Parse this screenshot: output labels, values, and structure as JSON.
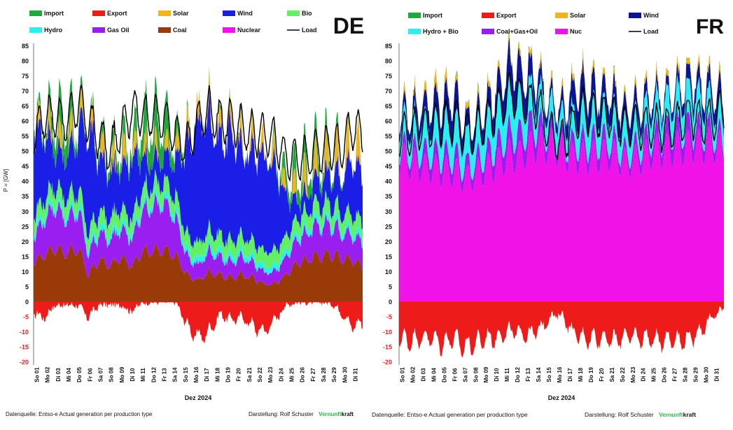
{
  "chart_data": [
    {
      "type": "area",
      "country": "DE",
      "title": "DE",
      "xlabel": "Dez 2024",
      "ylabel": "P = [GW]",
      "ylim": [
        -20,
        85
      ],
      "yticks": [
        -20,
        -15,
        -10,
        -5,
        0,
        5,
        10,
        15,
        20,
        25,
        30,
        35,
        40,
        45,
        50,
        55,
        60,
        65,
        70,
        75,
        80,
        85
      ],
      "grid": false,
      "legend_position": "top",
      "x_ticks": [
        "So 01",
        "Mo 02",
        "Di 03",
        "Mi 04",
        "Do 05",
        "Fr 06",
        "Sa 07",
        "So 08",
        "Mo 09",
        "Di 10",
        "Mi 11",
        "Do 12",
        "Fr 13",
        "Sa 14",
        "So 15",
        "Mo 16",
        "Di 17",
        "Mi 18",
        "Do 19",
        "Fr 20",
        "Sa 21",
        "So 22",
        "Mo 23",
        "Di 24",
        "Mi 25",
        "Do 26",
        "Fr 27",
        "Sa 28",
        "So 29",
        "Mo 30",
        "Di 31"
      ],
      "legend": [
        {
          "name": "Import",
          "color": "#1fa83e",
          "kind": "box"
        },
        {
          "name": "Export",
          "color": "#ee1b1b",
          "kind": "box"
        },
        {
          "name": "Solar",
          "color": "#f0b41c",
          "kind": "box"
        },
        {
          "name": "Wind",
          "color": "#1a1ee6",
          "kind": "box"
        },
        {
          "name": "Bio",
          "color": "#64f064",
          "kind": "box"
        },
        {
          "name": "Hydro",
          "color": "#28f0f0",
          "kind": "box"
        },
        {
          "name": "Gas Oil",
          "color": "#9a1ef0",
          "kind": "box"
        },
        {
          "name": "Coal",
          "color": "#9a3a08",
          "kind": "box"
        },
        {
          "name": "Nuclear",
          "color": "#f012e6",
          "kind": "box"
        },
        {
          "name": "Load",
          "color": "#000000",
          "kind": "line"
        }
      ],
      "series_daily": {
        "base": {
          "name": "Coal",
          "color": "#9a3a08",
          "values": [
            13,
            16,
            18,
            16,
            18,
            9,
            14,
            12,
            15,
            12,
            17,
            17,
            17,
            15,
            9,
            7,
            10,
            9,
            8,
            9,
            8,
            6,
            6,
            9,
            13,
            14,
            15,
            16,
            15,
            14,
            12
          ]
        },
        "stack": [
          {
            "name": "Gas Oil",
            "color": "#9a1ef0",
            "values": [
              8,
              12,
              14,
              11,
              13,
              7,
              9,
              8,
              10,
              9,
              14,
              15,
              15,
              12,
              6,
              5,
              7,
              6,
              5,
              6,
              5,
              4,
              4,
              6,
              8,
              9,
              10,
              10,
              9,
              8,
              8
            ]
          },
          {
            "name": "Hydro",
            "color": "#28f0f0",
            "values": [
              2,
              2,
              2,
              2,
              2,
              2,
              2,
              2,
              2,
              2,
              2,
              2,
              2,
              2,
              2,
              2,
              2,
              2,
              2,
              2,
              2,
              2,
              2,
              2,
              2,
              2,
              2,
              2,
              2,
              2,
              2
            ]
          },
          {
            "name": "Bio",
            "color": "#64f064",
            "values": [
              5,
              5,
              5,
              5,
              5,
              5,
              5,
              5,
              5,
              5,
              5,
              5,
              5,
              5,
              5,
              5,
              5,
              5,
              5,
              5,
              5,
              5,
              5,
              5,
              5,
              5,
              5,
              5,
              5,
              5,
              5
            ]
          },
          {
            "name": "Wind",
            "color": "#1a1ee6",
            "values": [
              28,
              22,
              12,
              14,
              18,
              34,
              18,
              15,
              14,
              20,
              10,
              8,
              8,
              12,
              30,
              40,
              38,
              32,
              36,
              28,
              30,
              32,
              28,
              14,
              6,
              6,
              8,
              10,
              12,
              18,
              16
            ]
          },
          {
            "name": "Solar",
            "color": "#f0b41c",
            "values": [
              3,
              3,
              4,
              4,
              3,
              3,
              4,
              3,
              4,
              3,
              3,
              3,
              3,
              3,
              3,
              3,
              3,
              3,
              3,
              3,
              3,
              3,
              3,
              3,
              4,
              5,
              5,
              6,
              5,
              6,
              6
            ]
          },
          {
            "name": "Import",
            "color": "#1fa83e",
            "values": [
              2,
              3,
              10,
              12,
              4,
              1,
              3,
              4,
              6,
              5,
              12,
              14,
              12,
              5,
              1,
              0,
              0,
              1,
              0,
              1,
              0,
              0,
              2,
              6,
              8,
              8,
              6,
              4,
              3,
              0,
              0
            ]
          }
        ],
        "export": {
          "name": "Export",
          "color": "#ee1b1b",
          "values": [
            -4,
            -5,
            -1,
            -1,
            -1,
            -5,
            -1,
            -1,
            -1,
            -3,
            0,
            0,
            0,
            0,
            -8,
            -12,
            -10,
            -4,
            -6,
            -5,
            -8,
            -10,
            -6,
            -1,
            0,
            0,
            0,
            0,
            -3,
            -8,
            -7
          ]
        },
        "load": {
          "name": "Load",
          "color": "#000000",
          "values": [
            55,
            62,
            62,
            60,
            66,
            60,
            55,
            50,
            58,
            64,
            62,
            62,
            60,
            55,
            52,
            60,
            64,
            60,
            60,
            58,
            56,
            56,
            54,
            48,
            48,
            48,
            50,
            52,
            52,
            58,
            56
          ]
        }
      }
    },
    {
      "type": "area",
      "country": "FR",
      "title": "FR",
      "xlabel": "Dez 2024",
      "ylabel": "",
      "ylim": [
        -20,
        85
      ],
      "yticks": [
        -20,
        -15,
        -10,
        -5,
        0,
        5,
        10,
        15,
        20,
        25,
        30,
        35,
        40,
        45,
        50,
        55,
        60,
        65,
        70,
        75,
        80,
        85
      ],
      "grid": false,
      "legend_position": "top",
      "x_ticks": [
        "So 01",
        "Mo 02",
        "Di 03",
        "Mi 04",
        "Do 05",
        "Fr 06",
        "Sa 07",
        "So 08",
        "Mo 09",
        "Di 10",
        "Mi 11",
        "Do 12",
        "Fr 13",
        "Sa 14",
        "So 15",
        "Mo 16",
        "Di 17",
        "Mi 18",
        "Do 19",
        "Fr 20",
        "Sa 21",
        "So 22",
        "Mo 23",
        "Di 24",
        "Mi 25",
        "Do 26",
        "Fr 27",
        "Sa 28",
        "So 29",
        "Mo 30",
        "Di 31"
      ],
      "legend": [
        {
          "name": "Import",
          "color": "#1fa83e",
          "kind": "box"
        },
        {
          "name": "Export",
          "color": "#ee1b1b",
          "kind": "box"
        },
        {
          "name": "Solar",
          "color": "#f0b41c",
          "kind": "box"
        },
        {
          "name": "Wind",
          "color": "#0c1496",
          "kind": "box"
        },
        {
          "name": "Hydro + Bio",
          "color": "#28f0f0",
          "kind": "box"
        },
        {
          "name": "Coal+Gas+Oil",
          "color": "#9a1ef0",
          "kind": "box"
        },
        {
          "name": "Nuc",
          "color": "#f012e6",
          "kind": "box"
        },
        {
          "name": "Load",
          "color": "#000000",
          "kind": "line"
        }
      ],
      "series_daily": {
        "base": {
          "name": "Nuc",
          "color": "#f012e6",
          "values": [
            48,
            46,
            45,
            44,
            44,
            43,
            41,
            42,
            44,
            46,
            48,
            48,
            51,
            52,
            52,
            50,
            48,
            48,
            48,
            49,
            48,
            46,
            47,
            49,
            50,
            51,
            51,
            52,
            52,
            52,
            50
          ]
        },
        "stack": [
          {
            "name": "Coal+Gas+Oil",
            "color": "#9a1ef0",
            "values": [
              3,
              4,
              5,
              5,
              5,
              5,
              4,
              4,
              5,
              6,
              7,
              7,
              7,
              6,
              4,
              3,
              4,
              5,
              5,
              5,
              4,
              3,
              4,
              5,
              5,
              6,
              6,
              6,
              5,
              4,
              3
            ]
          },
          {
            "name": "Hydro + Bio",
            "color": "#28f0f0",
            "values": [
              8,
              9,
              10,
              10,
              10,
              10,
              9,
              9,
              10,
              11,
              12,
              12,
              11,
              10,
              8,
              7,
              9,
              10,
              10,
              10,
              9,
              8,
              9,
              10,
              10,
              10,
              11,
              11,
              10,
              9,
              8
            ]
          },
          {
            "name": "Wind",
            "color": "#0c1496",
            "values": [
              3,
              4,
              5,
              6,
              8,
              10,
              6,
              5,
              6,
              8,
              10,
              10,
              7,
              5,
              3,
              4,
              8,
              9,
              7,
              6,
              6,
              6,
              5,
              4,
              3,
              3,
              4,
              5,
              5,
              5,
              6
            ]
          },
          {
            "name": "Solar",
            "color": "#f0b41c",
            "values": [
              1,
              1,
              1,
              2,
              2,
              1,
              1,
              1,
              1,
              1,
              1,
              1,
              1,
              1,
              1,
              1,
              1,
              1,
              1,
              1,
              1,
              1,
              1,
              1,
              1,
              1,
              1,
              1,
              1,
              1,
              1
            ]
          },
          {
            "name": "Import",
            "color": "#1fa83e",
            "values": [
              0,
              0,
              0,
              0,
              0,
              0,
              0,
              0,
              0,
              0,
              0,
              0,
              0,
              0,
              0,
              0,
              0,
              0,
              0,
              0,
              0,
              0,
              0,
              0,
              0,
              0,
              0,
              0,
              0,
              0,
              0
            ]
          }
        ],
        "export": {
          "name": "Export",
          "color": "#ee1b1b",
          "values": [
            -12,
            -13,
            -12,
            -12,
            -14,
            -12,
            -15,
            -14,
            -12,
            -12,
            -10,
            -10,
            -11,
            -9,
            -5,
            -4,
            -10,
            -12,
            -12,
            -12,
            -13,
            -11,
            -12,
            -12,
            -13,
            -12,
            -13,
            -12,
            -9,
            -5,
            -2
          ]
        },
        "load": {
          "name": "Load",
          "color": "#000000",
          "values": [
            55,
            56,
            58,
            58,
            60,
            60,
            57,
            56,
            60,
            64,
            68,
            68,
            66,
            64,
            56,
            53,
            58,
            64,
            62,
            62,
            60,
            58,
            58,
            58,
            58,
            58,
            60,
            62,
            60,
            60,
            64
          ]
        }
      }
    }
  ],
  "footer": {
    "left_source": "Datenquelle: Entso-e  Actual generation per production type",
    "left_author": "Darstellung:  Rolf  Schuster",
    "left_brand_green": "Vernunft",
    "left_brand_black": "kraft",
    "right_source": "Datenquelle: Entso-e  Actual generation per production type",
    "right_author": "Darstellung:  Rolf Schuster",
    "right_brand_green": "Vernunft",
    "right_brand_black": "kraft",
    "brand_green_color": "#2db84b"
  }
}
